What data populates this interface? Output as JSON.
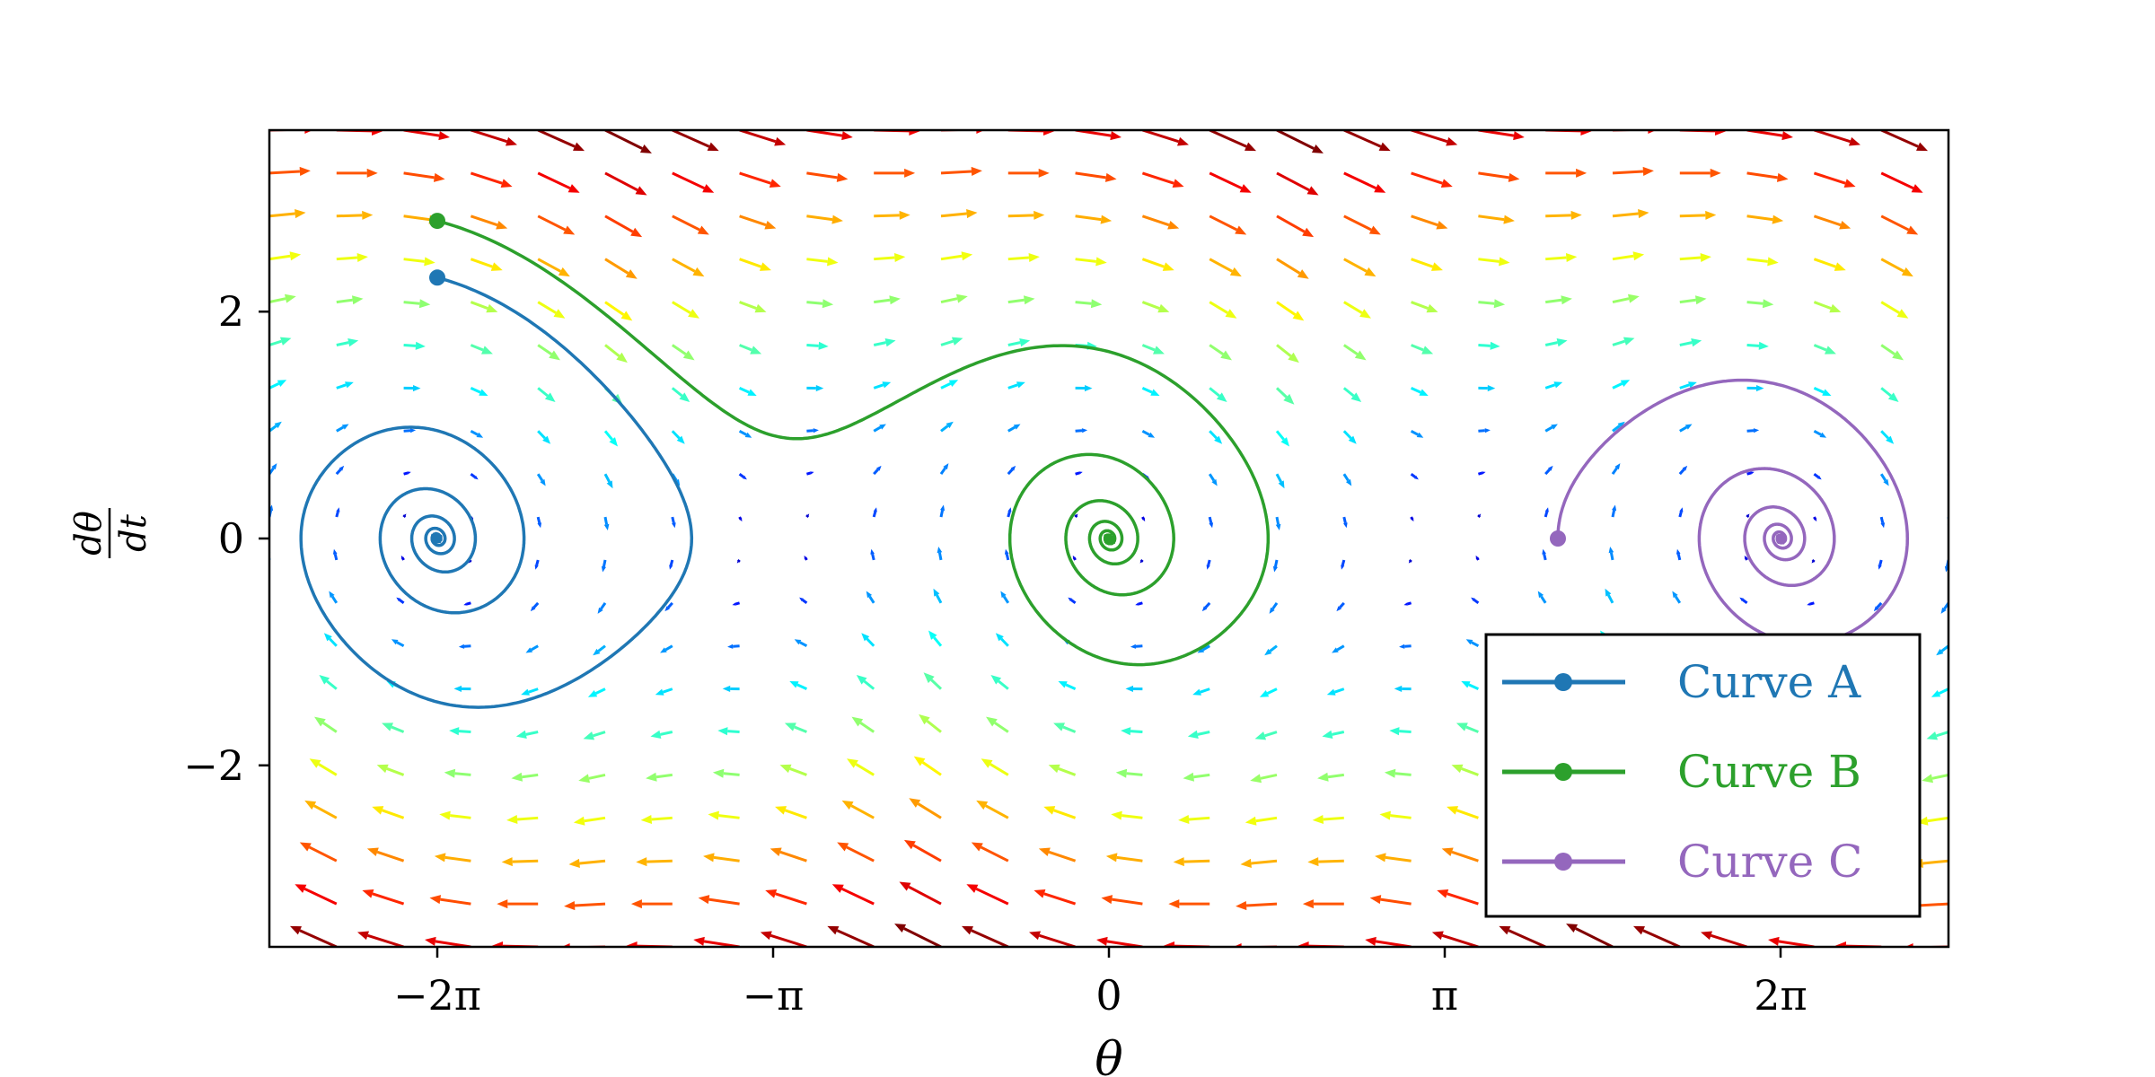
{
  "chart_data": {
    "type": "quiver+line",
    "title": "",
    "xlabel": "θ",
    "ylabel": {
      "numerator": "dθ",
      "denominator": "dt"
    },
    "xlim": [
      -7.854,
      7.854
    ],
    "ylim": [
      -3.6,
      3.6
    ],
    "x_ticks": [
      {
        "value": -6.2832,
        "label": "−2π"
      },
      {
        "value": -3.1416,
        "label": "−π"
      },
      {
        "value": 0,
        "label": "0"
      },
      {
        "value": 3.1416,
        "label": "π"
      },
      {
        "value": 6.2832,
        "label": "2π"
      }
    ],
    "y_ticks": [
      {
        "value": -2,
        "label": "−2"
      },
      {
        "value": 0,
        "label": "0"
      },
      {
        "value": 2,
        "label": "2"
      }
    ],
    "grid": false,
    "vector_field": {
      "equation": "dθ/dt = ω, dω/dt = −sin(θ) − 0.25·ω",
      "colormap": "jet",
      "x_range": [
        -7.854,
        7.854
      ],
      "y_range": [
        -3.6,
        3.6
      ],
      "nx": 26,
      "ny": 20
    },
    "series": [
      {
        "name": "Curve A",
        "color": "#1f77b4",
        "start": [
          -6.2832,
          2.3
        ],
        "damping": 0.25
      },
      {
        "name": "Curve B",
        "color": "#2ca02c",
        "start": [
          -6.2832,
          2.8
        ],
        "damping": 0.25
      },
      {
        "name": "Curve C",
        "color": "#9467bd",
        "start": [
          4.2,
          0.0
        ],
        "damping": 0.25
      }
    ],
    "legend": {
      "position": "lower-right"
    }
  }
}
